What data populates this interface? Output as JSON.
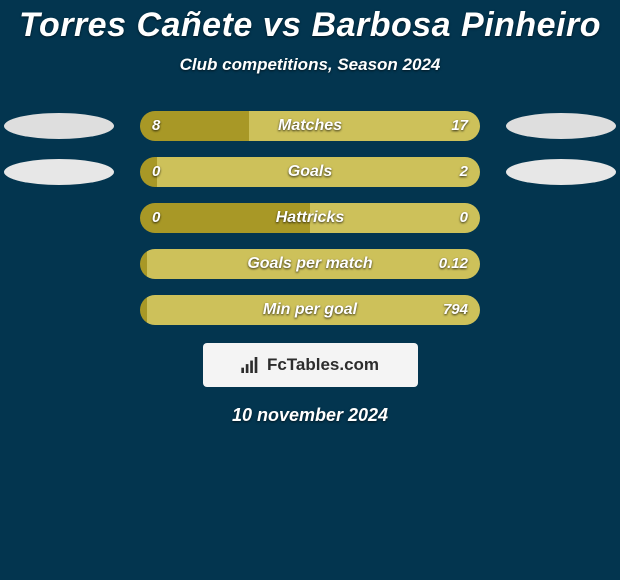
{
  "page_bg": "#03354f",
  "title": "Torres Cañete vs Barbosa Pinheiro",
  "subtitle": "Club competitions, Season 2024",
  "title_color": "#ffffff",
  "subtitle_color": "#ffffff",
  "date_text": "10 november 2024",
  "colors": {
    "left": "#a89826",
    "right": "#cdc15a",
    "oval_row0": "#dedede",
    "oval_row1": "#e7e7e7",
    "footer_bg": "#f4f4f4",
    "footer_text": "#2d2d2d"
  },
  "rows": [
    {
      "label": "Matches",
      "left_value": "8",
      "right_value": "17",
      "left_pct": 32,
      "right_pct": 68,
      "show_ovals": true,
      "oval_color": "#dedede"
    },
    {
      "label": "Goals",
      "left_value": "0",
      "right_value": "2",
      "left_pct": 5,
      "right_pct": 95,
      "show_ovals": true,
      "oval_color": "#e7e7e7"
    },
    {
      "label": "Hattricks",
      "left_value": "0",
      "right_value": "0",
      "left_pct": 50,
      "right_pct": 50,
      "show_ovals": false
    },
    {
      "label": "Goals per match",
      "left_value": "",
      "right_value": "0.12",
      "left_pct": 2,
      "right_pct": 98,
      "show_ovals": false
    },
    {
      "label": "Min per goal",
      "left_value": "",
      "right_value": "794",
      "left_pct": 2,
      "right_pct": 98,
      "show_ovals": false
    }
  ],
  "footer_label": "FcTables.com"
}
